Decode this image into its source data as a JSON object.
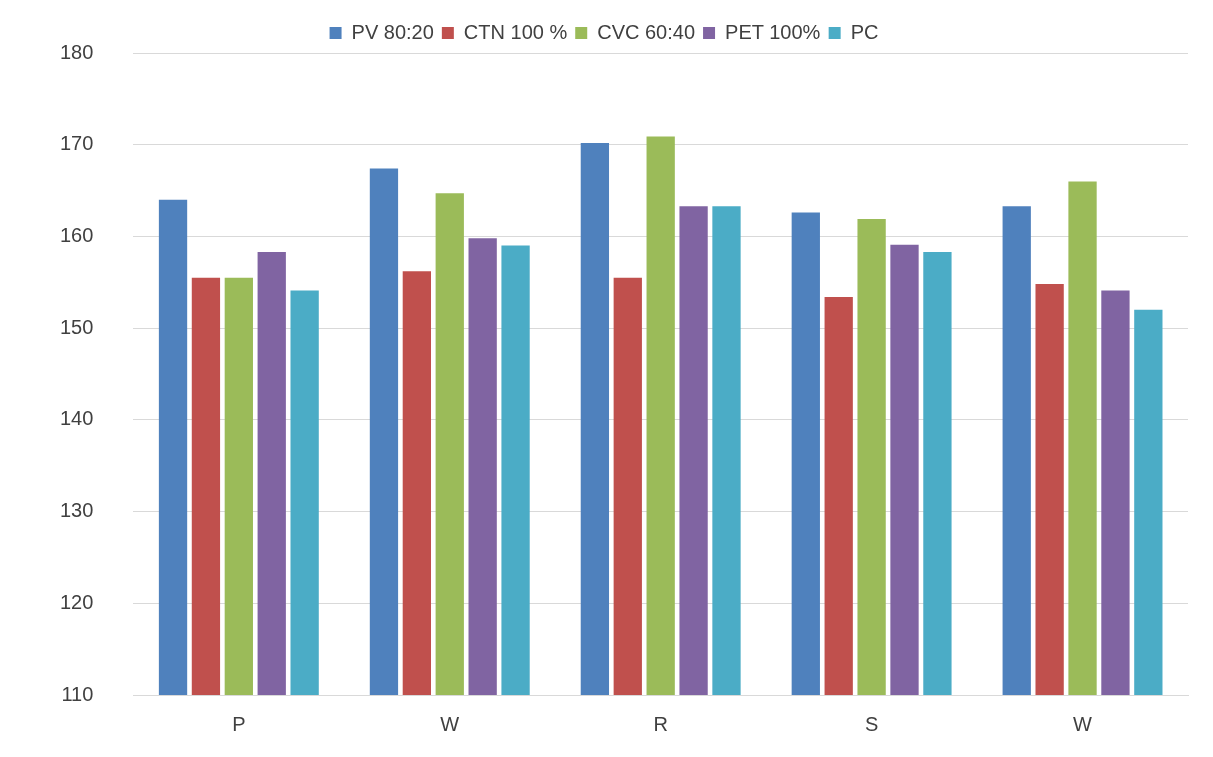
{
  "chart_data": {
    "type": "bar",
    "categories": [
      "P",
      "W",
      "R",
      "S",
      "W"
    ],
    "series": [
      {
        "name": "PV 80:20",
        "color": "#4f81bd",
        "values": [
          164.0,
          167.4,
          170.2,
          162.6,
          163.3
        ]
      },
      {
        "name": "CTN 100 %",
        "color": "#c0504d",
        "values": [
          155.5,
          156.2,
          155.5,
          153.4,
          154.8
        ]
      },
      {
        "name": "CVC 60:40",
        "color": "#9bbb59",
        "values": [
          155.5,
          164.7,
          170.9,
          161.9,
          166.0
        ]
      },
      {
        "name": "PET 100%",
        "color": "#8064a2",
        "values": [
          158.3,
          159.8,
          163.3,
          159.1,
          154.1
        ]
      },
      {
        "name": "PC",
        "color": "#4bacc6",
        "values": [
          154.1,
          159.0,
          163.3,
          158.3,
          152.0
        ]
      }
    ],
    "ylim": [
      110,
      180
    ],
    "yticks": [
      110,
      120,
      130,
      140,
      150,
      160,
      170,
      180
    ],
    "grid": "y",
    "legend": "top"
  }
}
